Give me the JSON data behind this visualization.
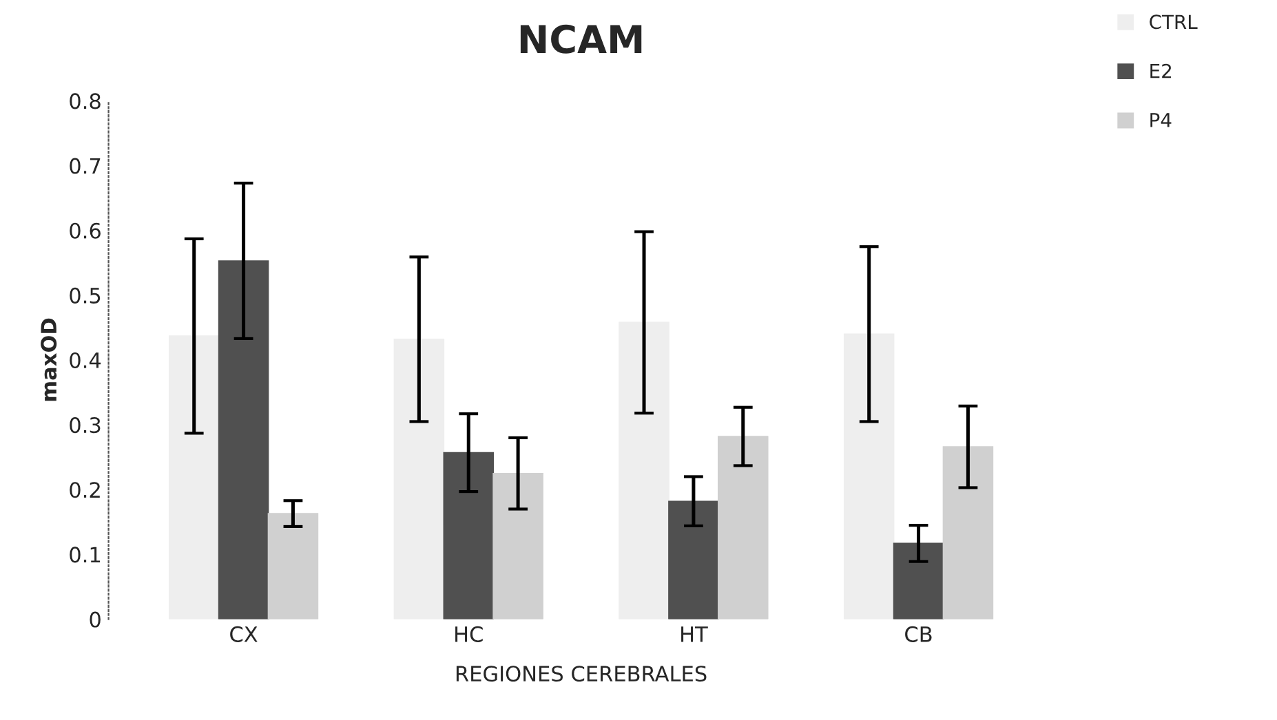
{
  "chart_data": {
    "type": "bar",
    "title": "NCAM",
    "xlabel": "REGIONES CEREBRALES",
    "ylabel": "maxOD",
    "categories": [
      "CX",
      "HC",
      "HT",
      "CB"
    ],
    "series": [
      {
        "name": "CTRL",
        "color": "#eeeeee",
        "values": [
          0.437,
          0.432,
          0.458,
          0.44
        ],
        "errors": [
          0.15,
          0.127,
          0.14,
          0.135
        ]
      },
      {
        "name": "E2",
        "color": "#505050",
        "values": [
          0.553,
          0.257,
          0.182,
          0.117
        ],
        "errors": [
          0.12,
          0.06,
          0.038,
          0.028
        ]
      },
      {
        "name": "P4",
        "color": "#d0d0d0",
        "values": [
          0.163,
          0.225,
          0.282,
          0.266
        ],
        "errors": [
          0.02,
          0.055,
          0.045,
          0.063
        ]
      }
    ],
    "ylim": [
      0,
      0.8
    ],
    "yticks": [
      0,
      0.1,
      0.2,
      0.3,
      0.4,
      0.5,
      0.6,
      0.7,
      0.8
    ],
    "grid": false,
    "legend": "top right"
  }
}
